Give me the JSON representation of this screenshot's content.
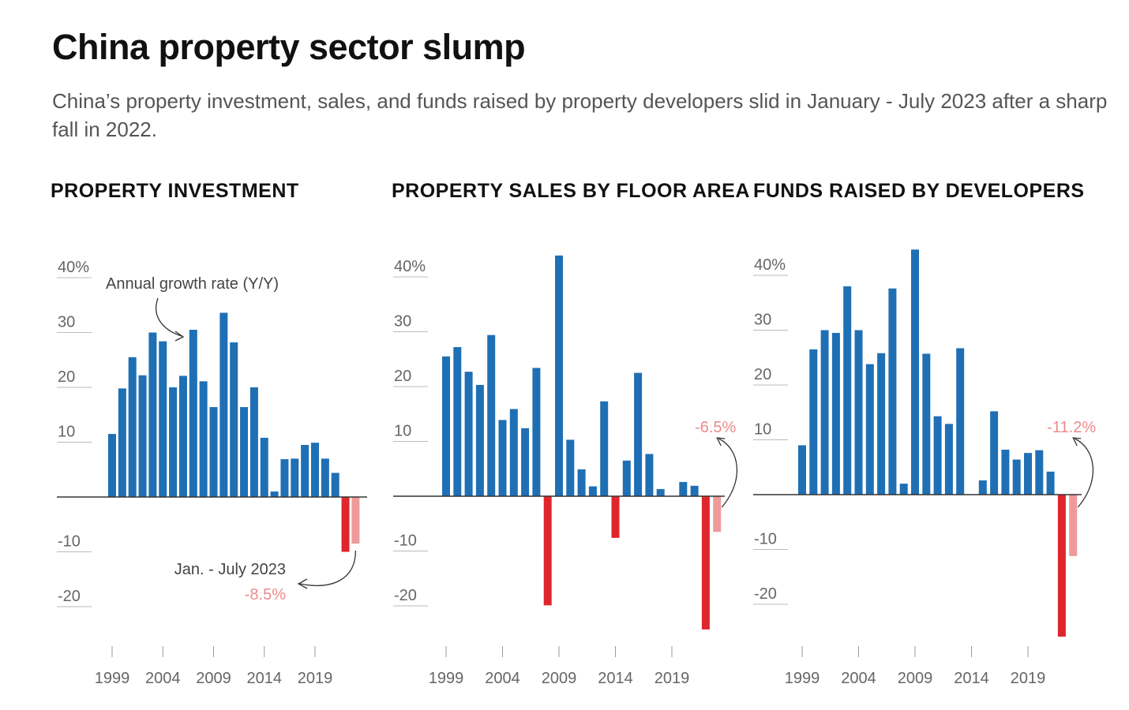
{
  "header": {
    "title": "China property sector slump",
    "subtitle": "China’s property investment, sales, and funds raised by property developers slid in January - July 2023 after a sharp fall in 2022."
  },
  "colors": {
    "positive": "#1f6fb4",
    "negative": "#e0262d",
    "partial_year": "#ef9a9a",
    "label": "#ee8a8a",
    "axis": "#333333",
    "grid": "#bbbbbb"
  },
  "chart_data": [
    {
      "type": "bar",
      "title": "PROPERTY INVESTMENT",
      "ylabel": "",
      "yticks": [
        "40%",
        "30",
        "20",
        "10",
        "-10",
        "-20"
      ],
      "ytick_values": [
        40,
        30,
        20,
        10,
        -10,
        -20
      ],
      "xticks": [
        "1999",
        "2004",
        "2009",
        "2014",
        "2019"
      ],
      "ylim": [
        -25,
        45
      ],
      "categories": [
        "1999",
        "2000",
        "2001",
        "2002",
        "2003",
        "2004",
        "2005",
        "2006",
        "2007",
        "2008",
        "2009",
        "2010",
        "2011",
        "2012",
        "2013",
        "2014",
        "2015",
        "2016",
        "2017",
        "2018",
        "2019",
        "2020",
        "2021",
        "2022",
        "Jan.-July 2023"
      ],
      "values": [
        11.5,
        19.8,
        25.5,
        22.2,
        30.0,
        28.4,
        20.0,
        22.1,
        30.5,
        21.1,
        16.4,
        33.6,
        28.2,
        16.4,
        20.0,
        10.8,
        1.0,
        6.9,
        7.0,
        9.5,
        9.9,
        7.0,
        4.4,
        -10.0,
        -8.5
      ],
      "annotations": {
        "series_note": "Annual growth rate (Y/Y)",
        "period_note": "Jan. - July 2023",
        "last_value_label": "-8.5%"
      }
    },
    {
      "type": "bar",
      "title": "PROPERTY SALES BY FLOOR AREA",
      "ylabel": "",
      "yticks": [
        "40%",
        "30",
        "20",
        "10",
        "-10",
        "-20"
      ],
      "ytick_values": [
        40,
        30,
        20,
        10,
        -10,
        -20
      ],
      "xticks": [
        "1999",
        "2004",
        "2009",
        "2014",
        "2019"
      ],
      "ylim": [
        -25,
        45
      ],
      "categories": [
        "1999",
        "2000",
        "2001",
        "2002",
        "2003",
        "2004",
        "2005",
        "2006",
        "2007",
        "2008",
        "2009",
        "2010",
        "2011",
        "2012",
        "2013",
        "2014",
        "2015",
        "2016",
        "2017",
        "2018",
        "2019",
        "2020",
        "2021",
        "2022",
        "Jan.-July 2023"
      ],
      "values": [
        25.5,
        27.2,
        22.7,
        20.3,
        29.4,
        13.9,
        15.9,
        12.4,
        23.4,
        -19.9,
        43.9,
        10.3,
        4.9,
        1.8,
        17.3,
        -7.6,
        6.5,
        22.5,
        7.7,
        1.3,
        0,
        2.6,
        1.9,
        -24.3,
        -6.5
      ],
      "annotations": {
        "last_value_label": "-6.5%"
      }
    },
    {
      "type": "bar",
      "title": "FUNDS RAISED BY DEVELOPERS",
      "ylabel": "",
      "yticks": [
        "40%",
        "30",
        "20",
        "10",
        "-10",
        "-20"
      ],
      "ytick_values": [
        40,
        30,
        20,
        10,
        -10,
        -20
      ],
      "xticks": [
        "1999",
        "2004",
        "2009",
        "2014",
        "2019"
      ],
      "ylim": [
        -25,
        45
      ],
      "categories": [
        "1999",
        "2000",
        "2001",
        "2002",
        "2003",
        "2004",
        "2005",
        "2006",
        "2007",
        "2008",
        "2009",
        "2010",
        "2011",
        "2012",
        "2013",
        "2014",
        "2015",
        "2016",
        "2017",
        "2018",
        "2019",
        "2020",
        "2021",
        "2022",
        "Jan.-July 2023"
      ],
      "values": [
        9.0,
        26.5,
        30.0,
        29.5,
        38.0,
        30.0,
        23.8,
        25.8,
        37.6,
        2.0,
        44.7,
        25.7,
        14.3,
        12.9,
        26.7,
        0,
        2.6,
        15.2,
        8.2,
        6.4,
        7.6,
        8.1,
        4.2,
        -25.9,
        -11.2
      ],
      "annotations": {
        "last_value_label": "-11.2%"
      }
    }
  ]
}
